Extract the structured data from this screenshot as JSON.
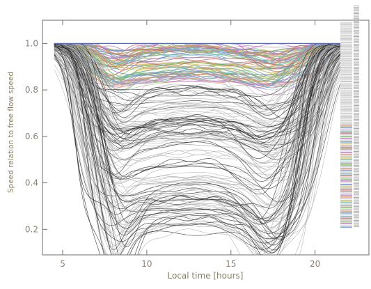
{
  "chart_data": {
    "type": "line",
    "title": "",
    "xlabel": "Local time [hours]",
    "ylabel": "Speed relation to free flow speed",
    "xlim": [
      3.8,
      23.2
    ],
    "ylim": [
      0.09,
      1.1
    ],
    "xticks": [
      5,
      10,
      15,
      20
    ],
    "yticks": [
      0.2,
      0.4,
      0.6,
      0.8,
      1.0
    ],
    "xtick_labels": [
      "5",
      "10",
      "15",
      "20"
    ],
    "ytick_labels": [
      "0.2",
      "0.4",
      "0.6",
      "0.8",
      "1.0"
    ],
    "x_start": 4.5,
    "x_end": 21.5,
    "reference_line": 1.0,
    "grid": false,
    "legend": "right strip of colored swatches",
    "series_colors": [
      "#7fb86a",
      "#c07cc8",
      "#d89a6a",
      "#6b8fd0",
      "#d0c060",
      "#70b8b0",
      "#c06a6a",
      "#9a9a9a"
    ],
    "dark_series_color": "#2b2b2b",
    "light_series_color": "#a8a8a8",
    "reference_color": "#5a6ab0",
    "series_groups": [
      {
        "name": "",
        "count": 70,
        "minimum_range": [
          0.83,
          0.99
        ],
        "morning_drop": [
          0.0,
          0.06
        ],
        "evening_drop": [
          0.0,
          0.06
        ],
        "midday_sag": [
          0.0,
          0.03
        ]
      },
      {
        "name": "",
        "count": 55,
        "minimum_range": [
          0.55,
          0.85
        ],
        "morning_drop": [
          0.0,
          0.1
        ],
        "evening_drop": [
          0.0,
          0.12
        ],
        "midday_sag": [
          0.0,
          0.04
        ]
      },
      {
        "name": "",
        "count": 45,
        "minimum_range": [
          0.28,
          0.65
        ],
        "morning_drop": [
          0.0,
          0.15
        ],
        "evening_drop": [
          0.0,
          0.15
        ],
        "midday_sag": [
          0.0,
          0.05
        ]
      },
      {
        "name": "",
        "count": 35,
        "minimum_range": [
          0.12,
          0.35
        ],
        "morning_drop": [
          0.05,
          0.25
        ],
        "evening_drop": [
          0.05,
          0.25
        ],
        "midday_sag": [
          0.0,
          0.06
        ]
      }
    ]
  }
}
